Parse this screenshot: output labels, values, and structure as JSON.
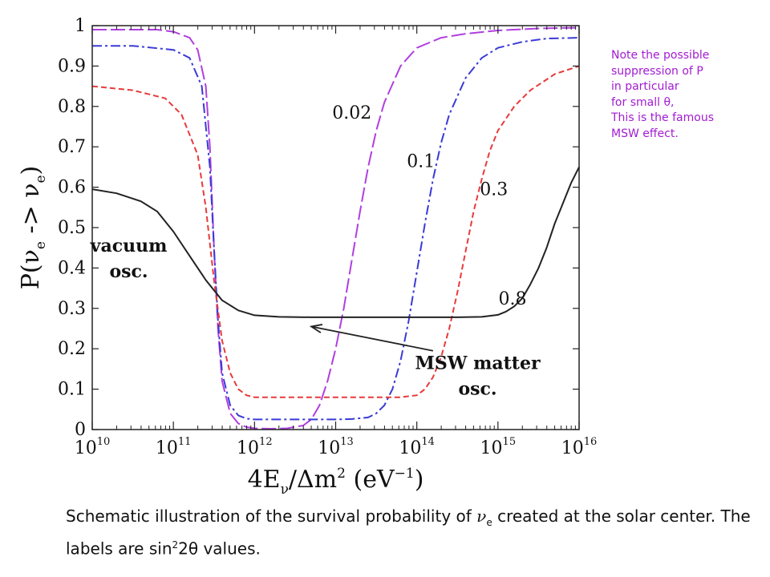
{
  "side_note": "Note the possible\nsuppression of P\nin particular\nfor small θ,\nThis is the famous\nMSW effect.",
  "caption": {
    "part1": "Schematic illustration of the survival probability of ",
    "nu_symbol": "ν",
    "nu_sub": "e",
    "part2": " created at the solar center. The labels are sin",
    "sup_2": "2",
    "two_theta": "2θ",
    "part3": " values."
  },
  "chart_data": {
    "type": "line",
    "xlabel": "4E_ν/Δm² (eV⁻¹)",
    "ylabel": "P(ν_e -> ν_e)",
    "xscale": "log",
    "xlim": [
      10000000000.0,
      1e+16
    ],
    "ylim": [
      0,
      1
    ],
    "x_ticks": [
      {
        "base": "10",
        "exp": "10"
      },
      {
        "base": "10",
        "exp": "11"
      },
      {
        "base": "10",
        "exp": "12"
      },
      {
        "base": "10",
        "exp": "13"
      },
      {
        "base": "10",
        "exp": "14"
      },
      {
        "base": "10",
        "exp": "15"
      },
      {
        "base": "10",
        "exp": "16"
      }
    ],
    "y_ticks": [
      "0",
      "0.1",
      "0.2",
      "0.3",
      "0.4",
      "0.5",
      "0.6",
      "0.7",
      "0.8",
      "0.9",
      "1"
    ],
    "series": [
      {
        "label": "0.02",
        "color": "#b03fe0",
        "dash": "18 5",
        "x": [
          10.0,
          10.4,
          10.8,
          11.0,
          11.2,
          11.3,
          11.4,
          11.45,
          11.5,
          11.55,
          11.6,
          11.7,
          11.8,
          11.9,
          12.0,
          12.2,
          12.4,
          12.6,
          12.7,
          12.8,
          12.9,
          13.0,
          13.1,
          13.2,
          13.3,
          13.4,
          13.5,
          13.6,
          13.8,
          14.0,
          14.3,
          14.6,
          15.0,
          15.5,
          16.0
        ],
        "y": [
          0.99,
          0.99,
          0.99,
          0.985,
          0.97,
          0.94,
          0.85,
          0.7,
          0.45,
          0.25,
          0.12,
          0.04,
          0.015,
          0.006,
          0.003,
          0.002,
          0.003,
          0.01,
          0.025,
          0.06,
          0.12,
          0.2,
          0.3,
          0.42,
          0.54,
          0.65,
          0.74,
          0.81,
          0.9,
          0.945,
          0.97,
          0.98,
          0.988,
          0.993,
          0.995
        ]
      },
      {
        "label": "0.1",
        "color": "#3a3ad6",
        "dash": "12 4 3 4",
        "x": [
          10.0,
          10.5,
          11.0,
          11.2,
          11.35,
          11.45,
          11.5,
          11.55,
          11.6,
          11.7,
          11.8,
          11.9,
          12.0,
          12.3,
          12.6,
          13.0,
          13.2,
          13.4,
          13.5,
          13.6,
          13.7,
          13.8,
          13.9,
          14.0,
          14.1,
          14.2,
          14.3,
          14.4,
          14.6,
          14.8,
          15.0,
          15.3,
          15.6,
          16.0
        ],
        "y": [
          0.95,
          0.95,
          0.94,
          0.92,
          0.85,
          0.65,
          0.45,
          0.27,
          0.14,
          0.06,
          0.035,
          0.027,
          0.025,
          0.025,
          0.025,
          0.025,
          0.026,
          0.03,
          0.04,
          0.06,
          0.1,
          0.17,
          0.27,
          0.39,
          0.51,
          0.62,
          0.71,
          0.78,
          0.87,
          0.92,
          0.945,
          0.96,
          0.968,
          0.97
        ]
      },
      {
        "label": "0.3",
        "color": "#e83a3a",
        "dash": "7 4",
        "x": [
          10.0,
          10.5,
          10.9,
          11.1,
          11.3,
          11.4,
          11.5,
          11.6,
          11.7,
          11.8,
          11.9,
          12.0,
          12.3,
          12.7,
          13.0,
          13.5,
          13.8,
          14.0,
          14.1,
          14.2,
          14.3,
          14.4,
          14.5,
          14.6,
          14.7,
          14.8,
          14.9,
          15.0,
          15.2,
          15.4,
          15.7,
          16.0
        ],
        "y": [
          0.85,
          0.84,
          0.82,
          0.78,
          0.68,
          0.55,
          0.37,
          0.22,
          0.14,
          0.1,
          0.085,
          0.08,
          0.08,
          0.08,
          0.08,
          0.08,
          0.08,
          0.085,
          0.1,
          0.13,
          0.18,
          0.25,
          0.34,
          0.44,
          0.54,
          0.62,
          0.69,
          0.74,
          0.8,
          0.84,
          0.88,
          0.9
        ]
      },
      {
        "label": "0.8",
        "color": "#222222",
        "dash": "",
        "x": [
          10.0,
          10.3,
          10.6,
          10.8,
          11.0,
          11.2,
          11.4,
          11.6,
          11.8,
          12.0,
          12.3,
          12.7,
          13.0,
          13.5,
          14.0,
          14.5,
          14.8,
          15.0,
          15.1,
          15.2,
          15.3,
          15.4,
          15.5,
          15.6,
          15.7,
          15.8,
          15.9,
          16.0
        ],
        "y": [
          0.595,
          0.585,
          0.565,
          0.54,
          0.49,
          0.43,
          0.37,
          0.32,
          0.295,
          0.283,
          0.279,
          0.278,
          0.278,
          0.278,
          0.278,
          0.278,
          0.279,
          0.284,
          0.292,
          0.305,
          0.325,
          0.36,
          0.4,
          0.45,
          0.51,
          0.56,
          0.61,
          0.65
        ]
      }
    ],
    "series_labels": [
      {
        "text": "0.02",
        "x": 13.2,
        "y": 0.77
      },
      {
        "text": "0.1",
        "x": 14.05,
        "y": 0.65
      },
      {
        "text": "0.3",
        "x": 14.95,
        "y": 0.58
      },
      {
        "text": "0.8",
        "x": 15.18,
        "y": 0.31
      }
    ],
    "annotations": [
      {
        "lines": [
          "vacuum",
          "osc."
        ],
        "x": 10.45,
        "y": 0.44
      },
      {
        "lines": [
          "MSW matter",
          "osc."
        ],
        "x": 14.75,
        "y": 0.15
      }
    ]
  }
}
